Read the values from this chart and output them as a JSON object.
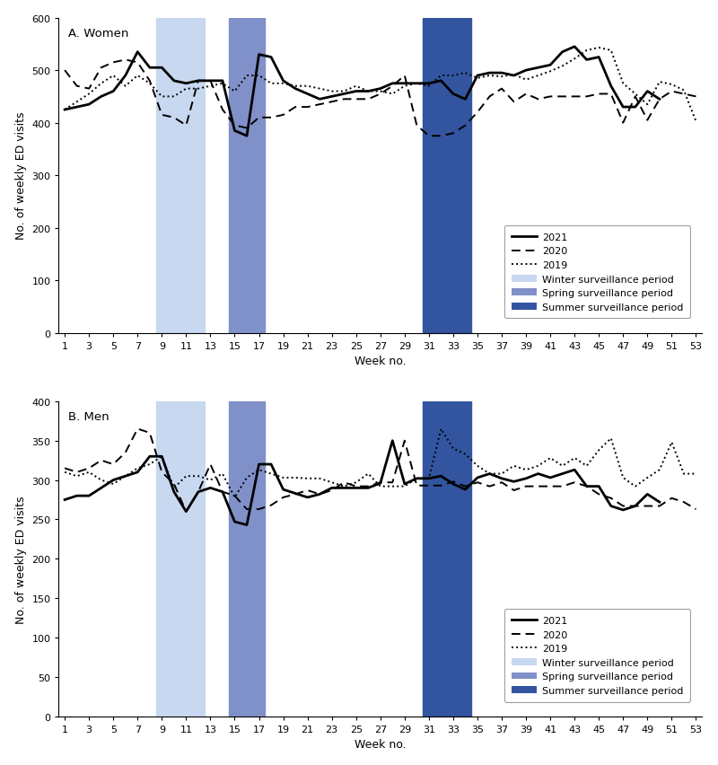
{
  "women_2021": [
    425,
    430,
    435,
    450,
    460,
    490,
    535,
    505,
    505,
    480,
    475,
    480,
    480,
    480,
    385,
    375,
    530,
    525,
    480,
    465,
    455,
    445,
    450,
    455,
    460,
    460,
    465,
    475,
    475,
    475,
    475,
    480,
    455,
    445,
    490,
    495,
    495,
    490,
    500,
    505,
    510,
    535,
    545,
    520,
    525,
    470,
    430,
    430,
    460,
    445,
    null,
    null,
    null
  ],
  "women_2020": [
    500,
    470,
    465,
    505,
    515,
    520,
    515,
    480,
    415,
    410,
    395,
    480,
    480,
    425,
    395,
    390,
    410,
    410,
    415,
    430,
    430,
    435,
    440,
    445,
    445,
    445,
    455,
    470,
    490,
    395,
    375,
    375,
    380,
    395,
    420,
    450,
    465,
    440,
    455,
    445,
    450,
    450,
    450,
    450,
    455,
    455,
    400,
    450,
    405,
    445,
    460,
    455,
    450
  ],
  "women_2019": [
    425,
    440,
    455,
    475,
    490,
    470,
    490,
    475,
    450,
    450,
    465,
    465,
    470,
    475,
    460,
    490,
    490,
    475,
    475,
    470,
    470,
    465,
    460,
    460,
    470,
    460,
    460,
    455,
    470,
    475,
    470,
    490,
    490,
    495,
    485,
    490,
    488,
    492,
    482,
    490,
    498,
    508,
    522,
    538,
    543,
    538,
    475,
    455,
    435,
    478,
    473,
    462,
    403
  ],
  "men_2021": [
    275,
    280,
    280,
    290,
    300,
    305,
    310,
    330,
    330,
    285,
    260,
    285,
    290,
    285,
    247,
    243,
    320,
    320,
    288,
    283,
    278,
    282,
    290,
    290,
    290,
    290,
    296,
    350,
    295,
    302,
    302,
    305,
    295,
    288,
    303,
    308,
    302,
    298,
    302,
    308,
    303,
    308,
    313,
    292,
    292,
    267,
    262,
    267,
    282,
    272,
    null,
    null,
    null
  ],
  "men_2020": [
    315,
    310,
    315,
    325,
    320,
    335,
    365,
    360,
    310,
    295,
    260,
    285,
    320,
    285,
    280,
    263,
    263,
    268,
    278,
    282,
    287,
    282,
    287,
    297,
    292,
    292,
    297,
    297,
    350,
    293,
    293,
    293,
    298,
    292,
    297,
    292,
    297,
    287,
    292,
    292,
    292,
    292,
    297,
    292,
    282,
    277,
    267,
    267,
    267,
    267,
    277,
    272,
    263
  ],
  "men_2019": [
    310,
    305,
    310,
    300,
    295,
    305,
    315,
    320,
    330,
    290,
    305,
    305,
    300,
    308,
    278,
    303,
    313,
    308,
    303,
    303,
    302,
    302,
    297,
    292,
    297,
    308,
    292,
    292,
    292,
    302,
    302,
    365,
    340,
    333,
    318,
    308,
    308,
    318,
    313,
    318,
    328,
    318,
    328,
    318,
    338,
    353,
    303,
    292,
    303,
    313,
    348,
    308,
    308
  ],
  "weeks": [
    1,
    2,
    3,
    4,
    5,
    6,
    7,
    8,
    9,
    10,
    11,
    12,
    13,
    14,
    15,
    16,
    17,
    18,
    19,
    20,
    21,
    22,
    23,
    24,
    25,
    26,
    27,
    28,
    29,
    30,
    31,
    32,
    33,
    34,
    35,
    36,
    37,
    38,
    39,
    40,
    41,
    42,
    43,
    44,
    45,
    46,
    47,
    48,
    49,
    50,
    51,
    52,
    53
  ],
  "winter_period": [
    8.5,
    12.5
  ],
  "spring_period": [
    14.5,
    17.5
  ],
  "summer_period": [
    30.5,
    34.5
  ],
  "winter_color": "#c8d8f0",
  "spring_color": "#8090c8",
  "summer_color": "#3355a0",
  "background_color": "#ffffff",
  "women_ylim": [
    0,
    600
  ],
  "men_ylim": [
    0,
    400
  ],
  "women_yticks": [
    0,
    100,
    200,
    300,
    400,
    500,
    600
  ],
  "men_yticks": [
    0,
    50,
    100,
    150,
    200,
    250,
    300,
    350,
    400
  ],
  "xticks": [
    1,
    3,
    5,
    7,
    9,
    11,
    13,
    15,
    17,
    19,
    21,
    23,
    25,
    27,
    29,
    31,
    33,
    35,
    37,
    39,
    41,
    43,
    45,
    47,
    49,
    51,
    53
  ],
  "xlabel": "Week no.",
  "ylabel": "No. of weekly ED visits",
  "title_a": "A. Women",
  "title_b": "B. Men"
}
